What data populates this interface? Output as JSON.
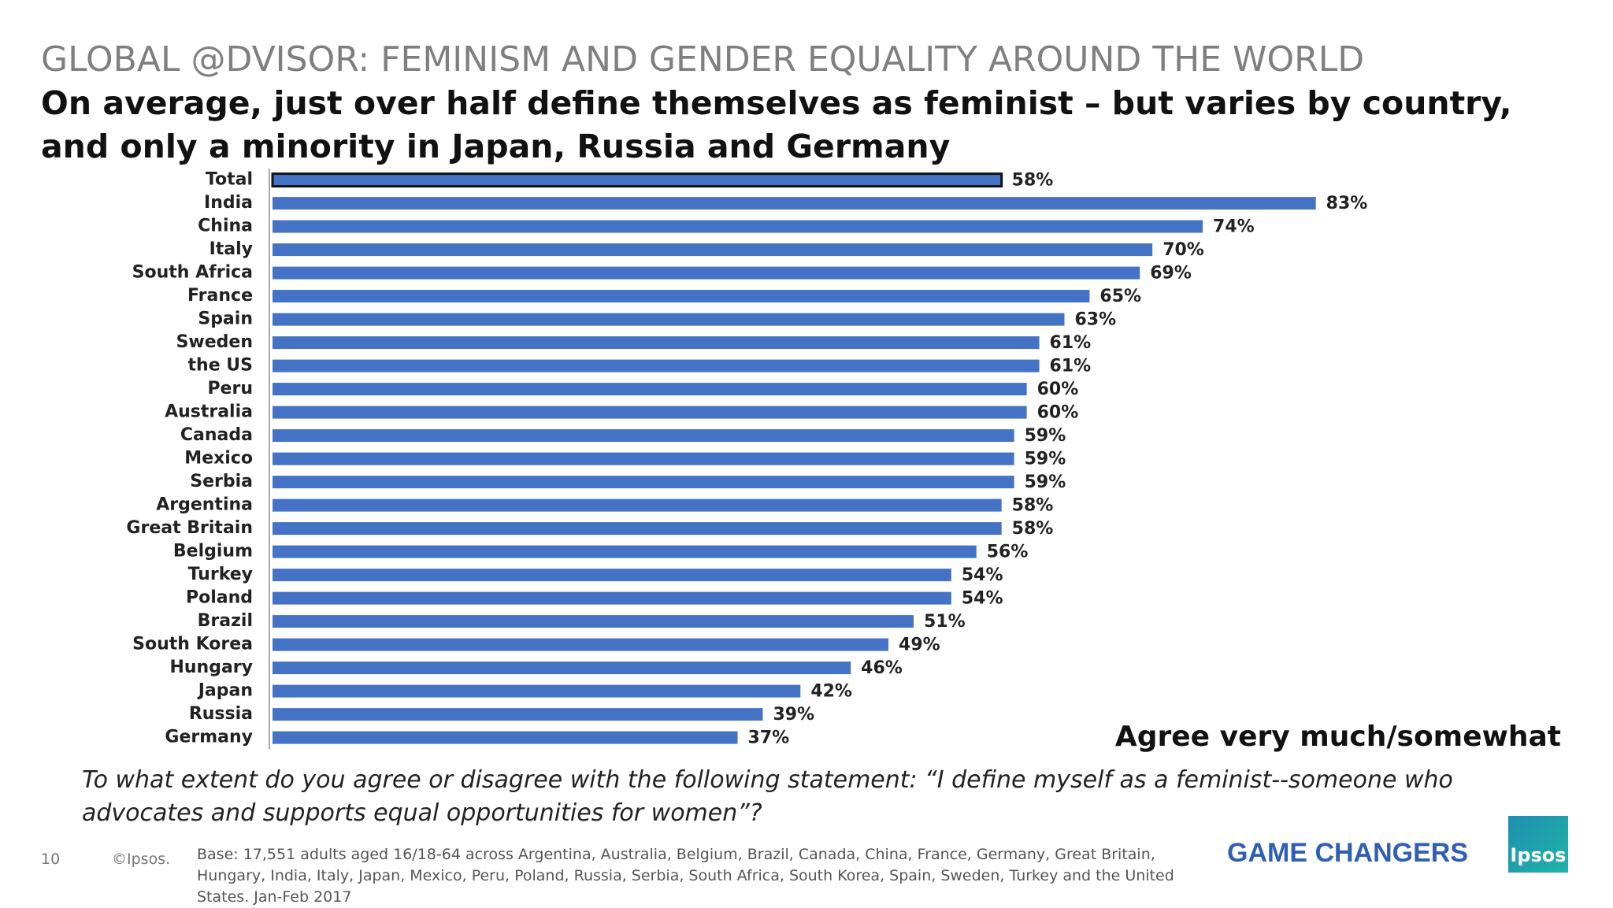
{
  "chart_data": {
    "type": "bar",
    "orientation": "horizontal",
    "title": "GLOBAL @DVISOR: FEMINISM AND GENDER EQUALITY AROUND THE WORLD",
    "subtitle": "On average, just over half define themselves as feminist – but varies by country, and only a minority in Japan, Russia and Germany",
    "annotation": "Agree very much/somewhat",
    "question": "To what extent do you agree or disagree with the following statement: “I define myself as a feminist--someone who advocates and supports equal opportunities for women”?",
    "categories": [
      "Total",
      "India",
      "China",
      "Italy",
      "South Africa",
      "France",
      "Spain",
      "Sweden",
      "the US",
      "Peru",
      "Australia",
      "Canada",
      "Mexico",
      "Serbia",
      "Argentina",
      "Great Britain",
      "Belgium",
      "Turkey",
      "Poland",
      "Brazil",
      "South Korea",
      "Hungary",
      "Japan",
      "Russia",
      "Germany"
    ],
    "values": [
      58,
      83,
      74,
      70,
      69,
      65,
      63,
      61,
      61,
      60,
      60,
      59,
      59,
      59,
      58,
      58,
      56,
      54,
      54,
      51,
      49,
      46,
      42,
      39,
      37
    ],
    "value_labels": [
      "58%",
      "83%",
      "74%",
      "70%",
      "69%",
      "65%",
      "63%",
      "61%",
      "61%",
      "60%",
      "60%",
      "59%",
      "59%",
      "59%",
      "58%",
      "58%",
      "56%",
      "54%",
      "54%",
      "51%",
      "49%",
      "46%",
      "42%",
      "39%",
      "37%"
    ],
    "color": "#4472c4",
    "edgecolors": [
      "#111111",
      null,
      null,
      null,
      null,
      null,
      null,
      null,
      null,
      null,
      null,
      null,
      null,
      null,
      null,
      null,
      null,
      null,
      null,
      null,
      null,
      null,
      null,
      null,
      null
    ]
  },
  "footer": {
    "page_number": "10",
    "copyright": "©Ipsos.",
    "base": "Base: 17,551  adults aged 16/18-64 across  Argentina, Australia, Belgium, Brazil, Canada, China, France, Germany, Great Britain, Hungary, India, Italy, Japan, Mexico, Peru, Poland, Russia, Serbia, South Africa, South Korea, Spain, Sweden, Turkey and the United States. Jan-Feb 2017",
    "slogan": "GAME CHANGERS",
    "logo": "Ipsos"
  }
}
